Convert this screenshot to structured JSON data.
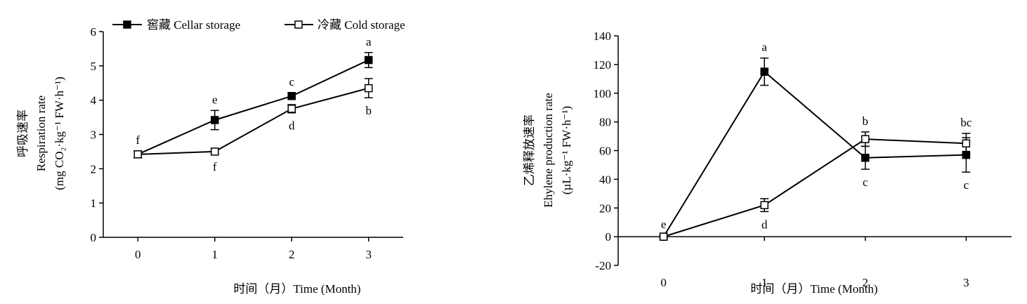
{
  "legend": {
    "series1_label": "窖藏  Cellar storage",
    "series2_label": "冷藏  Cold storage"
  },
  "chart_data": [
    {
      "type": "line",
      "title": "",
      "ylabel_lines": [
        "呼吸速率",
        "Respiration rate",
        "(mg CO₂·kg⁻¹ FW·h⁻¹)"
      ],
      "xlabel": "时间（月）Time (Month)",
      "x": [
        0,
        1,
        2,
        3
      ],
      "xlim": [
        -0.45,
        3.45
      ],
      "ylim": [
        0,
        6
      ],
      "yticks": [
        0,
        1,
        2,
        3,
        4,
        5,
        6
      ],
      "grid": false,
      "legend_position": "top",
      "series": [
        {
          "name": "窖藏  Cellar storage",
          "marker": "filled-square",
          "values": [
            2.42,
            3.42,
            4.12,
            5.17
          ],
          "errors": [
            0.1,
            0.28,
            0.1,
            0.22
          ],
          "letters": [
            "f",
            "e",
            "c",
            "a"
          ]
        },
        {
          "name": "冷藏  Cold storage",
          "marker": "open-square",
          "values": [
            2.42,
            2.5,
            3.75,
            4.35
          ],
          "errors": [
            0.1,
            0.06,
            0.12,
            0.28
          ],
          "letters": [
            "",
            "f",
            "d",
            "b"
          ]
        }
      ]
    },
    {
      "type": "line",
      "title": "",
      "ylabel_lines": [
        "乙烯释放速率",
        "Ehylene production rate",
        "(µL·kg⁻¹ FW·h⁻¹)"
      ],
      "xlabel": "时间（月）Time (Month)",
      "x": [
        0,
        1,
        2,
        3
      ],
      "xlim": [
        -0.45,
        3.45
      ],
      "ylim": [
        -20,
        140
      ],
      "yticks": [
        -20,
        0,
        20,
        40,
        60,
        80,
        100,
        120,
        140
      ],
      "grid": false,
      "series": [
        {
          "name": "窖藏  Cellar storage",
          "marker": "filled-square",
          "values": [
            0,
            115,
            55,
            57
          ],
          "errors": [
            1,
            9.5,
            8,
            12
          ],
          "letters": [
            "e",
            "a",
            "c",
            "c"
          ]
        },
        {
          "name": "冷藏  Cold storage",
          "marker": "open-square",
          "values": [
            0,
            22,
            68,
            65
          ],
          "errors": [
            1,
            4.5,
            5,
            7
          ],
          "letters": [
            "",
            "d",
            "b",
            "bc"
          ]
        }
      ]
    }
  ]
}
